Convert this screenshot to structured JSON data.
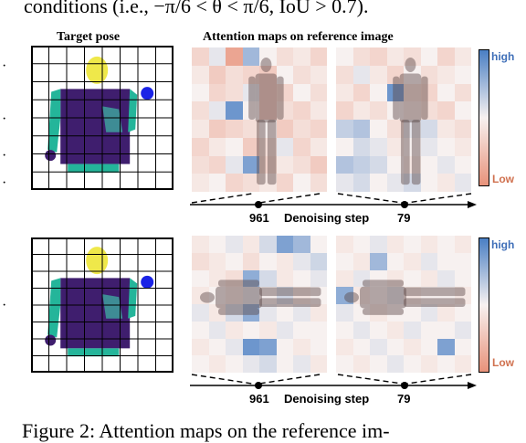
{
  "paper": {
    "top_text": "conditions (i.e., −π/6 < θ < π/6, IoU > 0.7).",
    "caption_text": "Figure 2:  Attention maps on the reference im-"
  },
  "figure": {
    "left_header": "Target pose",
    "right_header": "Attention maps on reference image",
    "axis_label": "Denoising step",
    "steps": [
      "961",
      "79"
    ],
    "colorbar": {
      "high": "high",
      "low": "Low"
    },
    "colors": {
      "high": "#4a7fc4",
      "low": "#e8927a",
      "mid": "#f7f1f0",
      "torso": "#3f1e6e",
      "arm": "#24b59a",
      "head": "#efe84a",
      "dot": "#1a23e6"
    },
    "rows": [
      {
        "maps": [
          {
            "cells": [
              [
                0.35,
                0.55,
                0.1,
                0.75,
                0.5,
                0.4,
                0.45,
                0.35
              ],
              [
                0.45,
                0.3,
                0.4,
                0.35,
                0.3,
                0.5,
                0.4,
                0.45
              ],
              [
                0.5,
                0.35,
                0.4,
                0.55,
                0.3,
                0.35,
                0.5,
                0.4
              ],
              [
                0.4,
                0.55,
                0.9,
                0.5,
                0.3,
                0.4,
                0.35,
                0.45
              ],
              [
                0.45,
                0.3,
                0.35,
                0.4,
                0.5,
                0.3,
                0.4,
                0.35
              ],
              [
                0.35,
                0.45,
                0.5,
                0.3,
                0.4,
                0.55,
                0.35,
                0.45
              ],
              [
                0.4,
                0.35,
                0.55,
                0.85,
                0.35,
                0.45,
                0.4,
                0.3
              ],
              [
                0.45,
                0.5,
                0.35,
                0.4,
                0.45,
                0.35,
                0.5,
                0.4
              ]
            ]
          },
          {
            "cells": [
              [
                0.5,
                0.4,
                0.35,
                0.45,
                0.4,
                0.5,
                0.35,
                0.45
              ],
              [
                0.4,
                0.55,
                0.45,
                0.35,
                0.5,
                0.4,
                0.45,
                0.5
              ],
              [
                0.45,
                0.35,
                0.5,
                0.9,
                0.4,
                0.35,
                0.5,
                0.4
              ],
              [
                0.35,
                0.45,
                0.4,
                0.5,
                0.45,
                0.4,
                0.35,
                0.5
              ],
              [
                0.65,
                0.7,
                0.5,
                0.4,
                0.55,
                0.6,
                0.45,
                0.4
              ],
              [
                0.5,
                0.6,
                0.55,
                0.45,
                0.5,
                0.55,
                0.5,
                0.45
              ],
              [
                0.7,
                0.65,
                0.6,
                0.5,
                0.45,
                0.5,
                0.55,
                0.5
              ],
              [
                0.55,
                0.6,
                0.5,
                0.55,
                0.6,
                0.5,
                0.45,
                0.55
              ]
            ]
          }
        ]
      },
      {
        "maps": [
          {
            "cells": [
              [
                0.45,
                0.5,
                0.55,
                0.45,
                0.6,
                0.85,
                0.75,
                0.5
              ],
              [
                0.4,
                0.45,
                0.5,
                0.4,
                0.5,
                0.45,
                0.55,
                0.62
              ],
              [
                0.5,
                0.45,
                0.4,
                0.8,
                0.6,
                0.45,
                0.5,
                0.55
              ],
              [
                0.45,
                0.5,
                0.45,
                0.55,
                0.5,
                0.6,
                0.45,
                0.5
              ],
              [
                0.55,
                0.45,
                0.6,
                0.8,
                0.55,
                0.5,
                0.55,
                0.45
              ],
              [
                0.5,
                0.55,
                0.45,
                0.5,
                0.45,
                0.55,
                0.5,
                0.5
              ],
              [
                0.45,
                0.5,
                0.55,
                0.9,
                0.85,
                0.5,
                0.45,
                0.5
              ],
              [
                0.5,
                0.45,
                0.5,
                0.55,
                0.6,
                0.5,
                0.55,
                0.45
              ]
            ]
          },
          {
            "cells": [
              [
                0.45,
                0.5,
                0.55,
                0.45,
                0.5,
                0.45,
                0.5,
                0.45
              ],
              [
                0.5,
                0.45,
                0.75,
                0.5,
                0.45,
                0.55,
                0.5,
                0.5
              ],
              [
                0.45,
                0.55,
                0.5,
                0.45,
                0.5,
                0.45,
                0.55,
                0.5
              ],
              [
                0.8,
                0.45,
                0.5,
                0.55,
                0.45,
                0.5,
                0.5,
                0.45
              ],
              [
                0.55,
                0.5,
                0.45,
                0.5,
                0.5,
                0.55,
                0.45,
                0.5
              ],
              [
                0.5,
                0.55,
                0.5,
                0.45,
                0.55,
                0.5,
                0.5,
                0.55
              ],
              [
                0.45,
                0.5,
                0.55,
                0.5,
                0.45,
                0.5,
                0.85,
                0.5
              ],
              [
                0.5,
                0.45,
                0.5,
                0.55,
                0.5,
                0.45,
                0.5,
                0.45
              ]
            ]
          }
        ]
      }
    ]
  }
}
